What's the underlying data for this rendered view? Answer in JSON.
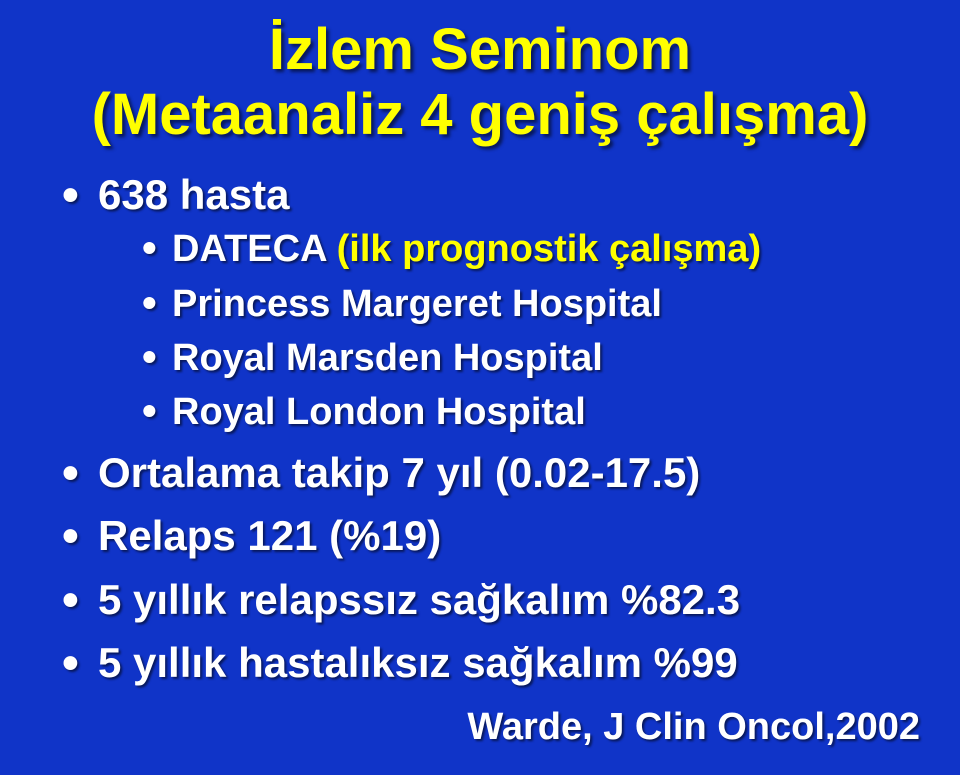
{
  "background_color": "#1034c8",
  "colors": {
    "title": "#ffff00",
    "body": "#ffffff",
    "accent": "#ffff00",
    "shadow": "rgba(0,0,0,0.55)"
  },
  "fontsizes": {
    "title": 58,
    "level1": 42,
    "level2": 38,
    "citation": 38
  },
  "title": {
    "line1": "İzlem Seminom",
    "line2": "(Metaanaliz 4 geniş çalışma)"
  },
  "bullets": [
    {
      "text": "638 hasta",
      "children": [
        {
          "prefix": "DATECA ",
          "suffix": "(ilk prognostik çalışma)"
        },
        {
          "prefix": "Princess Margeret Hospital",
          "suffix": ""
        },
        {
          "prefix": "Royal Marsden Hospital",
          "suffix": ""
        },
        {
          "prefix": "Royal London Hospital",
          "suffix": ""
        }
      ]
    },
    {
      "text": "Ortalama takip 7 yıl (0.02-17.5)"
    },
    {
      "text": "Relaps 121 (%19)"
    },
    {
      "text": "5 yıllık relapssız sağkalım %82.3"
    },
    {
      "text": "5 yıllık hastalıksız sağkalım %99"
    }
  ],
  "citation": "Warde, J Clin Oncol,2002"
}
